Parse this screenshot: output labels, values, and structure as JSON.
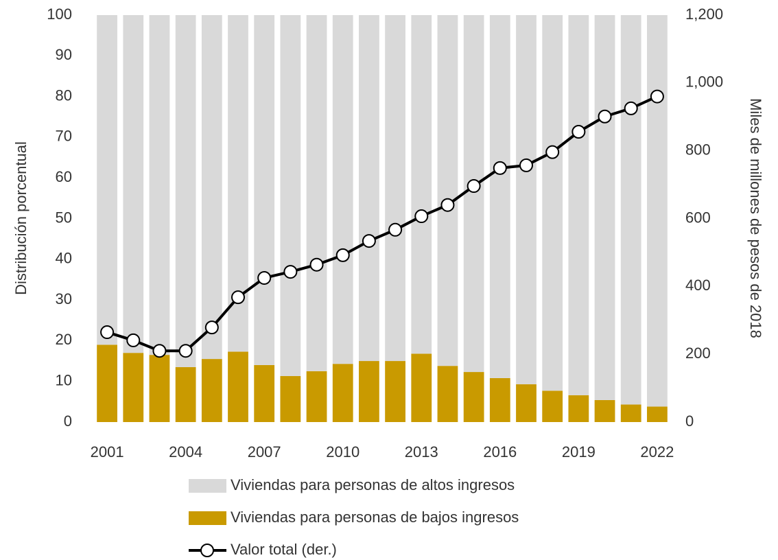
{
  "chart_data": {
    "type": "bar",
    "stacked": true,
    "categories": [
      "2001",
      null,
      null,
      "2004",
      null,
      null,
      "2007",
      null,
      null,
      "2010",
      null,
      null,
      "2013",
      null,
      null,
      "2016",
      null,
      null,
      "2019",
      null,
      null,
      "2022"
    ],
    "series": [
      {
        "name": "Viviendas para personas de altos ingresos",
        "type": "bar",
        "color": "#d9d9d9",
        "values": [
          81,
          83,
          83.5,
          86.5,
          84.5,
          82.7,
          86,
          88.7,
          87.5,
          85.7,
          85,
          85,
          83.2,
          86.2,
          87.7,
          89.2,
          90.7,
          92.3,
          93.4,
          94.6,
          95.7,
          96.2
        ]
      },
      {
        "name": "Viviendas para personas de bajos ingresos",
        "type": "bar",
        "color": "#c99a00",
        "values": [
          19,
          17,
          16.5,
          13.5,
          15.5,
          17.3,
          14,
          11.3,
          12.5,
          14.3,
          15,
          15,
          16.8,
          13.8,
          12.3,
          10.8,
          9.3,
          7.7,
          6.6,
          5.4,
          4.3,
          3.8
        ]
      },
      {
        "name": "Valor total (der.)",
        "type": "line",
        "axis": "y2",
        "color": "#000000",
        "values": [
          265,
          241,
          210,
          210,
          279,
          368,
          425,
          443,
          464,
          492,
          534,
          567,
          607,
          640,
          696,
          749,
          757,
          796,
          856,
          901,
          925,
          960
        ]
      }
    ],
    "ylabel": "Distribución porcentual",
    "y2label": "Miles de millones de pesos de 2018",
    "ylim": [
      0,
      100
    ],
    "yticks": [
      0,
      10,
      20,
      30,
      40,
      50,
      60,
      70,
      80,
      90,
      100
    ],
    "y2lim": [
      0,
      1200
    ],
    "y2ticks": [
      0,
      200,
      400,
      600,
      800,
      {
        "value": 1000,
        "label": "1,000"
      },
      {
        "value": 1200,
        "label": "1,200"
      }
    ],
    "legend": "bottom"
  }
}
